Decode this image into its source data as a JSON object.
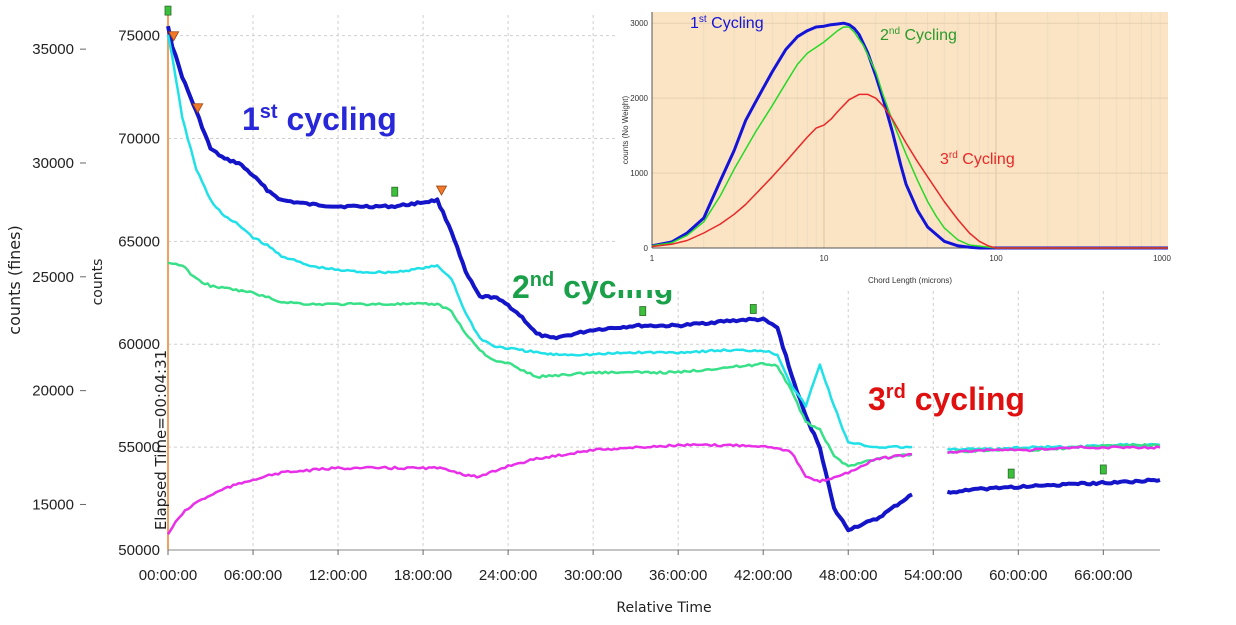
{
  "chart_data": [
    {
      "type": "line",
      "xlabel": "Relative Time",
      "ylabel": "counts",
      "y2label": "counts (fines)",
      "x_ticks": [
        "00:00:00",
        "06:00:00",
        "12:00:00",
        "18:00:00",
        "24:00:00",
        "30:00:00",
        "36:00:00",
        "42:00:00",
        "48:00:00",
        "54:00:00",
        "60:00:00",
        "66:00:00"
      ],
      "x_tick_hours": [
        0,
        6,
        12,
        18,
        24,
        30,
        36,
        42,
        48,
        54,
        60,
        66
      ],
      "xlim_hours": [
        0,
        70
      ],
      "ylim": [
        50000,
        76000
      ],
      "y_ticks": [
        50000,
        55000,
        60000,
        65000,
        70000,
        75000
      ],
      "y2lim": [
        13000,
        36500
      ],
      "y2_ticks": [
        15000,
        20000,
        25000,
        30000,
        35000
      ],
      "grid": true,
      "cursor_label": "Elapsed Time=00:04:31",
      "annotations": [
        {
          "text": "1st cycling",
          "base": "1",
          "sup": "st",
          "rest": " cycling",
          "color": "#2828d8"
        },
        {
          "text": "2nd cycling",
          "base": "2",
          "sup": "nd",
          "rest": " cycling",
          "color": "#1aa048"
        },
        {
          "text": "3rd cycling",
          "base": "3",
          "sup": "rd",
          "rest": " cycling",
          "color": "#e01010"
        }
      ],
      "series": [
        {
          "color": "#1414c8",
          "axis": "left",
          "width": 4,
          "x": [
            0,
            0.3,
            1,
            2,
            3,
            4,
            5,
            6,
            7,
            8,
            10,
            12,
            14,
            16,
            17,
            18,
            19,
            20,
            21,
            22,
            23,
            24,
            25,
            26,
            27,
            28,
            30,
            33,
            36,
            39,
            41,
            42,
            43,
            44,
            45,
            46,
            47,
            48,
            50,
            52.5,
            55,
            58,
            61,
            64,
            67,
            70
          ],
          "y": [
            75500,
            74500,
            73000,
            71300,
            69500,
            69000,
            68800,
            68200,
            67500,
            67000,
            66800,
            66700,
            66700,
            66700,
            66800,
            66900,
            67000,
            65500,
            63500,
            62300,
            62300,
            61900,
            61300,
            60500,
            60300,
            60400,
            60700,
            60900,
            60900,
            61100,
            61200,
            61200,
            60800,
            58500,
            56500,
            55000,
            52000,
            51000,
            51500,
            52700,
            52800,
            53000,
            53100,
            53200,
            53300,
            53400
          ]
        },
        {
          "color": "#20e0e8",
          "axis": "left",
          "width": 2.5,
          "x": [
            0,
            0.3,
            1,
            2,
            3,
            4,
            5,
            6,
            7,
            8,
            10,
            12,
            14,
            16,
            17,
            18,
            19,
            20,
            21,
            22,
            23,
            24,
            25,
            26,
            27,
            28,
            30,
            33,
            36,
            39,
            41,
            42,
            43,
            44,
            45,
            46,
            47,
            48,
            50,
            52.5,
            55,
            58,
            61,
            64,
            67,
            70
          ],
          "y": [
            75000,
            74000,
            71000,
            68500,
            67000,
            66200,
            65800,
            65200,
            64800,
            64300,
            63800,
            63600,
            63500,
            63500,
            63600,
            63700,
            63800,
            63200,
            61500,
            60300,
            59900,
            59800,
            59700,
            59600,
            59500,
            59500,
            59500,
            59600,
            59600,
            59700,
            59700,
            59700,
            59500,
            58000,
            57000,
            59000,
            57000,
            55200,
            55000,
            55000,
            54900,
            54900,
            55000,
            55000,
            55100,
            55100
          ]
        },
        {
          "color": "#38e088",
          "axis": "right",
          "width": 2.5,
          "x": [
            0,
            0.3,
            1,
            2,
            3,
            4,
            5,
            6,
            8,
            10,
            12,
            14,
            16,
            17,
            18,
            19,
            20,
            21,
            22,
            23,
            24,
            26,
            28,
            30,
            33,
            36,
            39,
            41,
            42,
            43,
            44,
            45,
            46,
            47,
            48,
            50,
            52.5,
            55,
            58,
            61,
            64,
            67,
            70
          ],
          "y": [
            25600,
            25600,
            25500,
            24900,
            24600,
            24500,
            24400,
            24300,
            23900,
            23800,
            23800,
            23800,
            23800,
            23800,
            23800,
            23800,
            23500,
            22500,
            21800,
            21300,
            21200,
            20600,
            20700,
            20800,
            20800,
            20800,
            21000,
            21100,
            21200,
            21100,
            20000,
            18600,
            18300,
            17100,
            16700,
            17000,
            17200,
            17300,
            17400,
            17400,
            17500,
            17600,
            17600
          ]
        },
        {
          "color": "#e830e8",
          "axis": "right",
          "width": 2.5,
          "x": [
            0,
            0.3,
            1,
            2,
            3,
            4,
            5,
            6,
            8,
            10,
            12,
            14,
            16,
            18,
            19,
            20,
            21,
            22,
            24,
            26,
            28,
            30,
            33,
            36,
            39,
            41,
            43,
            44,
            45,
            46,
            47,
            48,
            50,
            52.5,
            55,
            58,
            61,
            64,
            67,
            70
          ],
          "y": [
            13700,
            14000,
            14600,
            15100,
            15400,
            15700,
            15900,
            16100,
            16400,
            16500,
            16600,
            16600,
            16600,
            16600,
            16600,
            16500,
            16300,
            16200,
            16700,
            17000,
            17200,
            17400,
            17500,
            17600,
            17600,
            17600,
            17500,
            17300,
            16200,
            16000,
            16200,
            16400,
            17000,
            17200,
            17300,
            17400,
            17400,
            17500,
            17500,
            17500
          ]
        }
      ],
      "gap_hours": [
        52.5,
        53.8
      ],
      "markers": [
        {
          "shape": "flag",
          "color": "#3cc03c",
          "x": 0,
          "y": 75800
        },
        {
          "shape": "triangle",
          "color": "#f07a2a",
          "x": 0.4,
          "y": 74700
        },
        {
          "shape": "triangle",
          "color": "#f07a2a",
          "x": 2.1,
          "y": 71200
        },
        {
          "shape": "flag",
          "color": "#3cc03c",
          "x": 16,
          "y": 67000
        },
        {
          "shape": "triangle",
          "color": "#f07a2a",
          "x": 19.3,
          "y": 67200
        },
        {
          "shape": "flag",
          "color": "#3cc03c",
          "x": 33.5,
          "y": 61200
        },
        {
          "shape": "flag",
          "color": "#3cc03c",
          "x": 41.3,
          "y": 61300
        },
        {
          "shape": "flag",
          "color": "#3cc03c",
          "x": 59.5,
          "y": 53300
        },
        {
          "shape": "flag",
          "color": "#3cc03c",
          "x": 66,
          "y": 53500
        }
      ]
    },
    {
      "type": "line",
      "xlabel": "Chord Length (microns)",
      "ylabel": "counts (No Weight)",
      "xscale": "log",
      "xlim": [
        1,
        1000
      ],
      "x_ticks": [
        "1",
        "10",
        "100",
        "1000"
      ],
      "x_tick_values": [
        1,
        10,
        100,
        1000
      ],
      "ylim": [
        0,
        3150
      ],
      "y_ticks": [
        "0",
        "1000",
        "2000",
        "3000"
      ],
      "y_tick_values": [
        0,
        1000,
        2000,
        3000
      ],
      "background": "#fbe4c4",
      "grid": true,
      "series": [
        {
          "name": "1st Cycling",
          "base": "1",
          "sup": "st",
          "rest": " Cycling",
          "color": "#1414d8",
          "width": 3,
          "x": [
            1,
            1.3,
            1.6,
            2,
            2.5,
            3,
            3.5,
            4,
            5,
            6,
            7,
            8,
            9,
            10,
            11,
            12,
            13,
            14,
            15,
            16,
            18,
            20,
            22,
            25,
            28,
            30,
            35,
            40,
            50,
            60,
            70,
            80,
            100,
            200,
            500,
            1000
          ],
          "y": [
            30,
            80,
            200,
            400,
            900,
            1300,
            1700,
            1950,
            2350,
            2650,
            2820,
            2900,
            2950,
            2960,
            2980,
            2990,
            3000,
            2980,
            2930,
            2850,
            2600,
            2300,
            2000,
            1550,
            1100,
            850,
            500,
            280,
            90,
            30,
            10,
            0,
            0,
            0,
            0,
            0
          ]
        },
        {
          "name": "2nd Cycling",
          "base": "2",
          "sup": "nd",
          "rest": " Cycling",
          "color": "#28d828",
          "width": 1.5,
          "x": [
            1,
            1.3,
            1.6,
            2,
            2.5,
            3,
            4,
            5,
            6,
            7,
            8,
            10,
            12,
            13,
            14,
            15,
            17,
            20,
            22,
            25,
            30,
            35,
            40,
            45,
            50,
            60,
            70,
            100,
            200,
            1000
          ],
          "y": [
            30,
            70,
            170,
            350,
            700,
            1050,
            1550,
            1900,
            2200,
            2450,
            2600,
            2750,
            2900,
            2950,
            2950,
            2880,
            2700,
            2350,
            2050,
            1700,
            1250,
            900,
            620,
            420,
            270,
            110,
            40,
            0,
            0,
            0
          ]
        },
        {
          "name": "3rd Cycling",
          "base": "3",
          "sup": "rd",
          "rest": " Cycling",
          "color": "#e82828",
          "width": 1.5,
          "x": [
            1,
            1.3,
            1.6,
            2,
            2.5,
            3,
            3.5,
            4,
            5,
            6,
            7,
            8,
            9,
            10,
            11,
            12,
            14,
            16,
            18,
            20,
            22,
            25,
            28,
            30,
            35,
            40,
            50,
            60,
            70,
            80,
            90,
            100,
            200,
            1000
          ],
          "y": [
            20,
            50,
            100,
            200,
            320,
            450,
            580,
            720,
            950,
            1150,
            1330,
            1480,
            1600,
            1640,
            1720,
            1820,
            1980,
            2050,
            2050,
            2000,
            1900,
            1720,
            1520,
            1400,
            1150,
            950,
            620,
            380,
            200,
            90,
            30,
            0,
            0,
            0
          ]
        }
      ]
    }
  ]
}
